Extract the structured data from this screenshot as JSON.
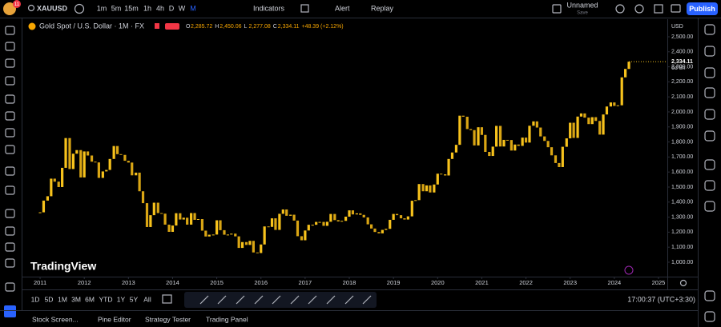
{
  "toolbar": {
    "symbol": "XAUUSD",
    "badge": "11",
    "intervals": [
      "1m",
      "5m",
      "15m",
      "1h",
      "4h",
      "D",
      "W",
      "M"
    ],
    "active_interval": 7,
    "indicators": "Indicators",
    "alert": "Alert",
    "replay": "Replay",
    "layout_name": "Unnamed",
    "layout_status": "Save",
    "publish": "Publish"
  },
  "chart_data": {
    "type": "candlestick",
    "title": "Gold Spot / U.S. Dollar · 1M · FX",
    "ohlc": [
      {
        "key": "O",
        "value": "2,285.72"
      },
      {
        "key": "H",
        "value": "2,450.06"
      },
      {
        "key": "L",
        "value": "2,277.08"
      },
      {
        "key": "C",
        "value": "2,334.11"
      }
    ],
    "change": "+48.39 (+2.12%)",
    "currency": "USD",
    "last_price_label": "2,334.11",
    "countdown": "6d 8h",
    "watermark": "TradingView",
    "up_color": "#f7c21c",
    "down_color": "#d9a514",
    "x": [
      2011,
      2011.08,
      2011.17,
      2011.25,
      2011.33,
      2011.42,
      2011.5,
      2011.58,
      2011.67,
      2011.75,
      2011.83,
      2011.92,
      2012,
      2012.08,
      2012.17,
      2012.25,
      2012.33,
      2012.42,
      2012.5,
      2012.58,
      2012.67,
      2012.75,
      2012.83,
      2012.92,
      2013,
      2013.08,
      2013.17,
      2013.25,
      2013.33,
      2013.42,
      2013.5,
      2013.58,
      2013.67,
      2013.75,
      2013.83,
      2013.92,
      2014,
      2014.08,
      2014.17,
      2014.25,
      2014.33,
      2014.42,
      2014.5,
      2014.58,
      2014.67,
      2014.75,
      2014.83,
      2014.92,
      2015,
      2015.08,
      2015.17,
      2015.25,
      2015.33,
      2015.42,
      2015.5,
      2015.58,
      2015.67,
      2015.75,
      2015.83,
      2015.92,
      2016,
      2016.08,
      2016.17,
      2016.25,
      2016.33,
      2016.42,
      2016.5,
      2016.58,
      2016.67,
      2016.75,
      2016.83,
      2016.92,
      2017,
      2017.08,
      2017.17,
      2017.25,
      2017.33,
      2017.42,
      2017.5,
      2017.58,
      2017.67,
      2017.75,
      2017.83,
      2017.92,
      2018,
      2018.08,
      2018.17,
      2018.25,
      2018.33,
      2018.42,
      2018.5,
      2018.58,
      2018.67,
      2018.75,
      2018.83,
      2018.92,
      2019,
      2019.08,
      2019.17,
      2019.25,
      2019.33,
      2019.42,
      2019.5,
      2019.58,
      2019.67,
      2019.75,
      2019.83,
      2019.92,
      2020,
      2020.08,
      2020.17,
      2020.25,
      2020.33,
      2020.42,
      2020.5,
      2020.58,
      2020.67,
      2020.75,
      2020.83,
      2020.92,
      2021,
      2021.08,
      2021.17,
      2021.25,
      2021.33,
      2021.42,
      2021.5,
      2021.58,
      2021.67,
      2021.75,
      2021.83,
      2021.92,
      2022,
      2022.08,
      2022.17,
      2022.25,
      2022.33,
      2022.42,
      2022.5,
      2022.58,
      2022.67,
      2022.75,
      2022.83,
      2022.92,
      2023,
      2023.08,
      2023.17,
      2023.25,
      2023.33,
      2023.42,
      2023.5,
      2023.58,
      2023.67,
      2023.75,
      2023.83,
      2023.92,
      2024,
      2024.08,
      2024.17,
      2024.25,
      2024.33
    ],
    "values": [
      1332,
      1410,
      1439,
      1556,
      1536,
      1500,
      1628,
      1826,
      1620,
      1722,
      1746,
      1564,
      1737,
      1710,
      1669,
      1664,
      1561,
      1604,
      1614,
      1687,
      1773,
      1719,
      1714,
      1675,
      1663,
      1578,
      1596,
      1472,
      1393,
      1234,
      1313,
      1396,
      1327,
      1323,
      1250,
      1202,
      1244,
      1326,
      1284,
      1296,
      1250,
      1327,
      1282,
      1287,
      1210,
      1171,
      1183,
      1184,
      1279,
      1213,
      1183,
      1184,
      1190,
      1172,
      1095,
      1134,
      1115,
      1142,
      1065,
      1061,
      1118,
      1238,
      1235,
      1292,
      1215,
      1322,
      1351,
      1309,
      1316,
      1277,
      1173,
      1146,
      1211,
      1249,
      1249,
      1268,
      1268,
      1242,
      1269,
      1321,
      1280,
      1271,
      1275,
      1303,
      1345,
      1318,
      1325,
      1315,
      1298,
      1252,
      1224,
      1201,
      1192,
      1215,
      1222,
      1282,
      1321,
      1313,
      1292,
      1284,
      1305,
      1409,
      1413,
      1520,
      1472,
      1511,
      1464,
      1517,
      1589,
      1585,
      1577,
      1687,
      1730,
      1781,
      1975,
      1968,
      1886,
      1879,
      1777,
      1898,
      1847,
      1734,
      1707,
      1769,
      1907,
      1770,
      1814,
      1813,
      1743,
      1783,
      1774,
      1829,
      1796,
      1908,
      1937,
      1896,
      1837,
      1807,
      1765,
      1711,
      1660,
      1633,
      1768,
      1824,
      1928,
      1827,
      1969,
      1990,
      1962,
      1919,
      1965,
      1940,
      1849,
      1983,
      2036,
      2063,
      2040,
      2044,
      2230,
      2286,
      2334.11
    ],
    "xlim": [
      2010.6,
      2025.2
    ],
    "xticks": [
      2011,
      2012,
      2013,
      2014,
      2015,
      2016,
      2017,
      2018,
      2019,
      2020,
      2021,
      2022,
      2023,
      2024,
      2025
    ],
    "ylim": [
      904,
      2617
    ],
    "yticks": [
      {
        "value": 1000,
        "label": "1,000.00"
      },
      {
        "value": 1100,
        "label": "1,100.00"
      },
      {
        "value": 1200,
        "label": "1,200.00"
      },
      {
        "value": 1300,
        "label": "1,300.00"
      },
      {
        "value": 1400,
        "label": "1,400.00"
      },
      {
        "value": 1500,
        "label": "1,500.00"
      },
      {
        "value": 1600,
        "label": "1,600.00"
      },
      {
        "value": 1700,
        "label": "1,700.00"
      },
      {
        "value": 1800,
        "label": "1,800.00"
      },
      {
        "value": 1900,
        "label": "1,900.00"
      },
      {
        "value": 2000,
        "label": "2,000.00"
      },
      {
        "value": 2100,
        "label": "2,100.00"
      },
      {
        "value": 2200,
        "label": "2,200.00"
      },
      {
        "value": 2300,
        "label": "2,300.00"
      },
      {
        "value": 2400,
        "label": "2,400.00"
      },
      {
        "value": 2500,
        "label": "2,500.00"
      }
    ]
  },
  "bottom_bar": {
    "ranges": [
      "1D",
      "5D",
      "1M",
      "3M",
      "6M",
      "YTD",
      "1Y",
      "5Y",
      "All"
    ],
    "clock": "17:00:37 (UTC+3:30)"
  },
  "panels": [
    "Stock Screen...",
    "Pine Editor",
    "Strategy Tester",
    "Trading Panel"
  ]
}
